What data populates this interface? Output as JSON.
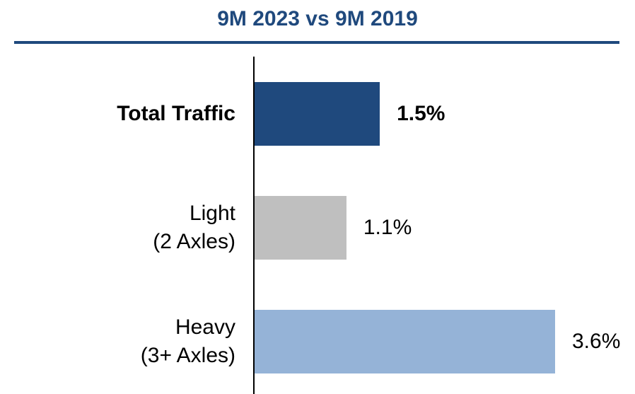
{
  "chart_data": {
    "type": "bar",
    "orientation": "horizontal",
    "title": "9M 2023 vs 9M 2019",
    "categories": [
      "Total Traffic",
      "Light\n(2 Axles)",
      "Heavy\n(3+ Axles)"
    ],
    "values": [
      1.5,
      1.1,
      3.6
    ],
    "value_labels": [
      "1.5%",
      "1.1%",
      "3.6%"
    ],
    "colors": [
      "#1f497d",
      "#bfbfbf",
      "#95b3d7"
    ],
    "bold": [
      true,
      false,
      false
    ]
  }
}
